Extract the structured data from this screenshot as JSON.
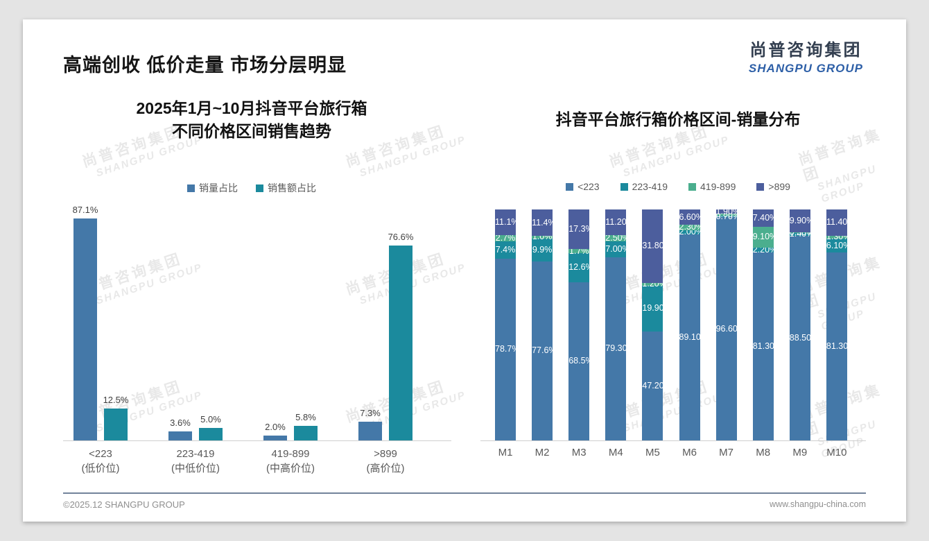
{
  "page": {
    "slide_title": "高端创收 低价走量 市场分层明显",
    "logo": {
      "cn": "尚普咨询集团",
      "en": "SHANGPU GROUP"
    },
    "watermark": {
      "cn": "尚普咨询集团",
      "en": "SHANGPU GROUP"
    },
    "footer": {
      "left": "©2025.12 SHANGPU GROUP",
      "right": "www.shangpu-china.com"
    }
  },
  "colors": {
    "blue": "#4478A8",
    "teal": "#1B8A9D",
    "green": "#4BAE8E",
    "slate": "#4C5E9D"
  },
  "chart_data": [
    {
      "type": "bar",
      "title_lines": [
        "2025年1月~10月抖音平台旅行箱",
        "不同价格区间销售趋势"
      ],
      "unit": "%",
      "ylim": [
        0,
        100
      ],
      "grid": false,
      "legend_position": "top",
      "legend": [
        {
          "name": "销量占比",
          "color": "#4478A8"
        },
        {
          "name": "销售额占比",
          "color": "#1B8A9D"
        }
      ],
      "categories": [
        {
          "range": "<223",
          "tier": "(低价位)"
        },
        {
          "range": "223-419",
          "tier": "(中低价位)"
        },
        {
          "range": "419-899",
          "tier": "(中高价位)"
        },
        {
          "range": ">899",
          "tier": "(高价位)"
        }
      ],
      "series": [
        {
          "name": "销量占比",
          "color": "#4478A8",
          "values": [
            87.1,
            3.6,
            2.0,
            7.3
          ],
          "labels": [
            "87.1%",
            "3.6%",
            "2.0%",
            "7.3%"
          ]
        },
        {
          "name": "销售额占比",
          "color": "#1B8A9D",
          "values": [
            12.5,
            5.0,
            5.8,
            76.6
          ],
          "labels": [
            "12.5%",
            "5.0%",
            "5.8%",
            "76.6%"
          ]
        }
      ]
    },
    {
      "type": "stacked-bar",
      "title": "抖音平台旅行箱价格区间-销量分布",
      "unit": "%",
      "ylim": [
        0,
        100
      ],
      "grid": false,
      "legend_position": "top",
      "legend": [
        {
          "name": "<223",
          "color": "#4478A8"
        },
        {
          "name": "223-419",
          "color": "#1B8A9D"
        },
        {
          "name": "419-899",
          "color": "#4BAE8E"
        },
        {
          "name": ">899",
          "color": "#4C5E9D"
        }
      ],
      "categories": [
        "M1",
        "M2",
        "M3",
        "M4",
        "M5",
        "M6",
        "M7",
        "M8",
        "M9",
        "M10"
      ],
      "series": [
        {
          "name": "<223",
          "color": "#4478A8",
          "values": [
            78.7,
            77.6,
            68.5,
            79.3,
            47.2,
            89.1,
            96.6,
            81.3,
            88.5,
            81.3
          ],
          "labels": [
            "78.7%",
            "77.6%",
            "68.5%",
            "79.30%",
            "47.20%",
            "89.10%",
            "96.60%",
            "81.30%",
            "88.50%",
            "81.30%"
          ]
        },
        {
          "name": "223-419",
          "color": "#1B8A9D",
          "values": [
            7.4,
            9.9,
            12.6,
            7.0,
            19.9,
            2.0,
            0.7,
            2.2,
            1.4,
            6.1
          ],
          "labels": [
            "7.4%",
            "9.9%",
            "12.6%",
            "7.00%",
            "19.90%",
            "2.00%",
            "0.70%",
            "2.20%",
            "1.40%",
            "6.10%"
          ]
        },
        {
          "name": "419-899",
          "color": "#4BAE8E",
          "values": [
            2.7,
            1.0,
            1.7,
            2.5,
            1.2,
            2.3,
            0.8,
            9.1,
            0.3,
            1.3
          ],
          "labels": [
            "2.7%",
            "1.0%",
            "1.7%",
            "2.50%",
            "1.20%",
            "2.30%",
            "0.80%",
            "9.10%",
            "0.30%",
            "1.30%"
          ]
        },
        {
          "name": ">899",
          "color": "#4C5E9D",
          "values": [
            11.1,
            11.4,
            17.3,
            11.2,
            31.8,
            6.6,
            1.9,
            7.4,
            9.9,
            11.4
          ],
          "labels": [
            "11.1%",
            "11.4%",
            "17.3%",
            "11.20%",
            "31.80%",
            "6.60%",
            "1.90%",
            "7.40%",
            "9.90%",
            "11.40%"
          ]
        }
      ]
    }
  ]
}
